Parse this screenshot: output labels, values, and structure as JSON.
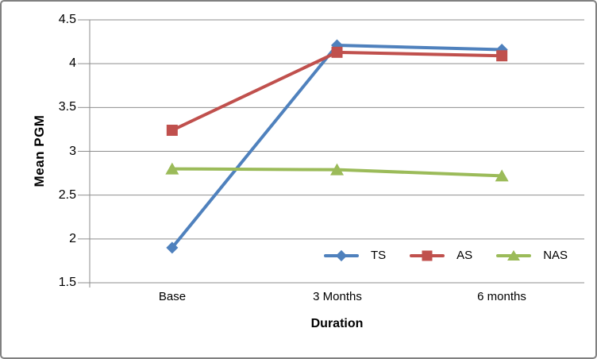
{
  "frame": {
    "border_color": "#808080"
  },
  "colors": {
    "gridline": "#8E8E8E",
    "axis": "#8E8E8E",
    "text": "#000000"
  },
  "chart_data": {
    "type": "line",
    "title": "",
    "xlabel": "Duration",
    "ylabel": "Mean PGM",
    "categories": [
      "Base",
      "3 Months",
      "6 months"
    ],
    "series": [
      {
        "name": "TS",
        "color": "#4F81BD",
        "marker": "diamond",
        "values": [
          1.9,
          4.21,
          4.16
        ]
      },
      {
        "name": "AS",
        "color": "#C0504D",
        "marker": "square",
        "values": [
          3.24,
          4.13,
          4.09
        ]
      },
      {
        "name": "NAS",
        "color": "#9BBB59",
        "marker": "triangle",
        "values": [
          2.8,
          2.79,
          2.72
        ]
      }
    ],
    "ylim": [
      1.5,
      4.5
    ],
    "y_ticks": [
      4.5,
      4,
      3.5,
      3,
      2.5,
      2,
      1.5
    ],
    "grid": true,
    "legend_position": "inside-bottom-right"
  }
}
